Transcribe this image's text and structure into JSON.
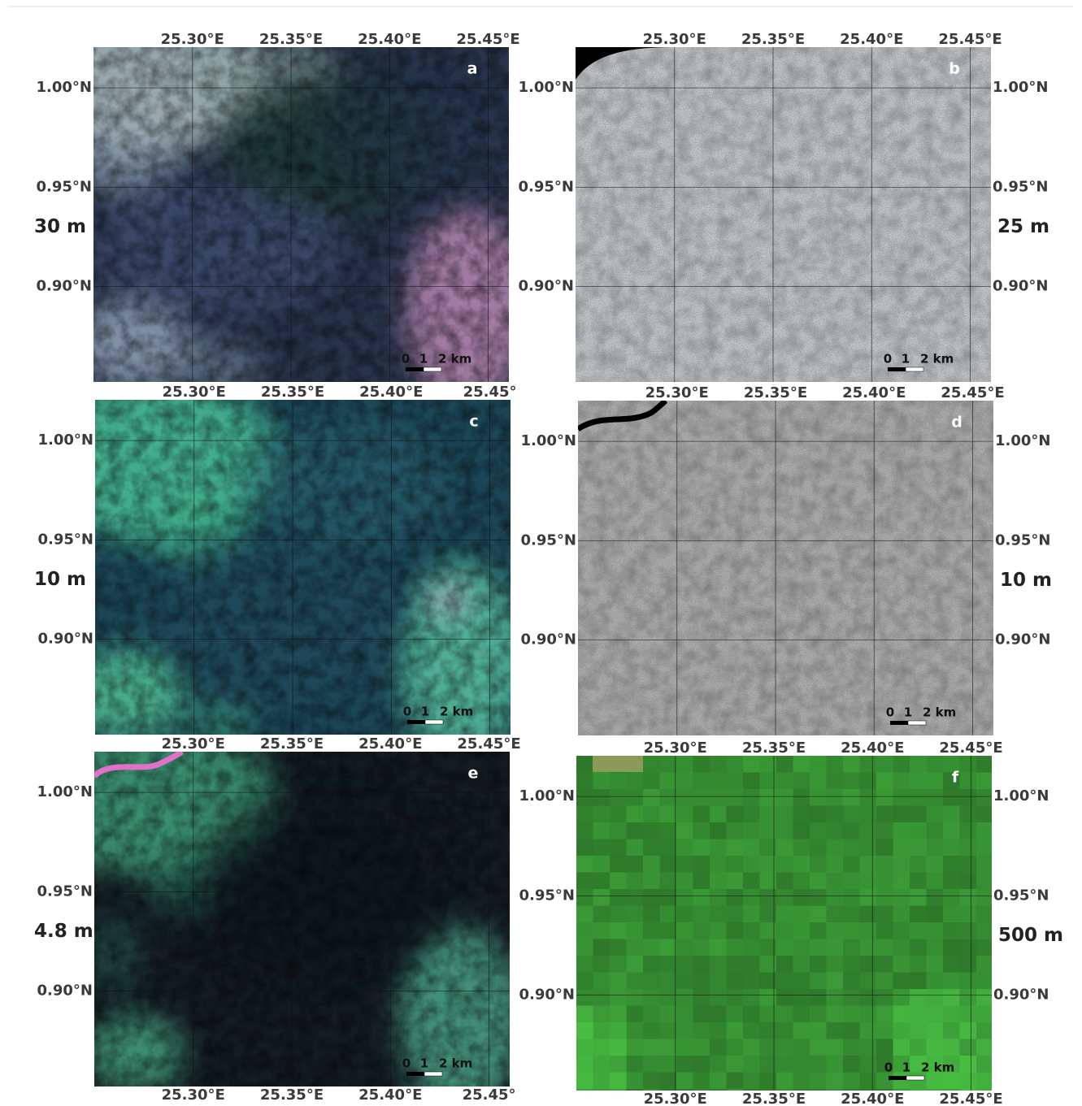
{
  "figure": {
    "extent": {
      "lon": [
        25.2498,
        25.4605
      ],
      "lat": [
        0.852,
        1.0205
      ]
    },
    "panels": [
      {
        "letter": "a",
        "resolution": "30 m",
        "lon_top": [
          {
            "value": 25.3,
            "label": "25.30°E"
          },
          {
            "value": 25.35,
            "label": "25.35°E"
          },
          {
            "value": 25.4,
            "label": "25.40°E"
          },
          {
            "value": 25.45,
            "label": "25.45°E"
          }
        ],
        "lat_left": [
          {
            "value": 1.0,
            "label": "1.00°N"
          },
          {
            "value": 0.95,
            "label": "0.95°N"
          },
          {
            "value": 0.9,
            "label": "0.90°N"
          }
        ],
        "scale": [
          "0",
          "1",
          "2 km"
        ]
      },
      {
        "letter": "b",
        "resolution": "25 m",
        "lon_top": [
          {
            "value": 25.3,
            "label": "25.30°E"
          },
          {
            "value": 25.35,
            "label": "25.35°E"
          },
          {
            "value": 25.4,
            "label": "25.40°E"
          },
          {
            "value": 25.45,
            "label": "25.45°E"
          }
        ],
        "lat_left": [
          {
            "value": 1.0,
            "label": "1.00°N"
          },
          {
            "value": 0.95,
            "label": "0.95°N"
          },
          {
            "value": 0.9,
            "label": "0.90°N"
          }
        ],
        "lat_right": [
          {
            "value": 1.0,
            "label": "1.00°N"
          },
          {
            "value": 0.95,
            "label": "0.95°N"
          },
          {
            "value": 0.9,
            "label": "0.90°N"
          }
        ],
        "scale": [
          "0",
          "1",
          "2 km"
        ]
      },
      {
        "letter": "c",
        "resolution": "10 m",
        "lon_top": [
          {
            "value": 25.3,
            "label": "25.30°E"
          },
          {
            "value": 25.35,
            "label": "25.35°E"
          },
          {
            "value": 25.4,
            "label": "25.40°E"
          },
          {
            "value": 25.45,
            "label": "25.45°"
          }
        ],
        "lat_left": [
          {
            "value": 1.0,
            "label": "1.00°N"
          },
          {
            "value": 0.95,
            "label": "0.95°N"
          },
          {
            "value": 0.9,
            "label": "0.90°N"
          }
        ],
        "scale": [
          "0",
          "1",
          "2 km"
        ]
      },
      {
        "letter": "d",
        "resolution": "10 m",
        "lon_top": [
          {
            "value": 25.3,
            "label": "25.30°E"
          },
          {
            "value": 25.35,
            "label": "25.35°E"
          },
          {
            "value": 25.4,
            "label": "25.40°E"
          },
          {
            "value": 25.45,
            "label": "25.45°E"
          }
        ],
        "lat_left": [
          {
            "value": 1.0,
            "label": "1.00°N"
          },
          {
            "value": 0.95,
            "label": "0.95°N"
          },
          {
            "value": 0.9,
            "label": "0.90°N"
          }
        ],
        "lat_right": [
          {
            "value": 1.0,
            "label": "1.00°N"
          },
          {
            "value": 0.95,
            "label": "0.95°N"
          },
          {
            "value": 0.9,
            "label": "0.90°N"
          }
        ],
        "scale": [
          "0",
          "1",
          "2 km"
        ]
      },
      {
        "letter": "e",
        "resolution": "4.8 m",
        "lon_top": [
          {
            "value": 25.3,
            "label": "25.30°E"
          },
          {
            "value": 25.35,
            "label": "25.35°E"
          },
          {
            "value": 25.4,
            "label": "25.40°E"
          },
          {
            "value": 25.45,
            "label": "25.45°E"
          }
        ],
        "lon_bottom": [
          {
            "value": 25.3,
            "label": "25.30°E"
          },
          {
            "value": 25.35,
            "label": "25.35°E"
          },
          {
            "value": 25.4,
            "label": "25.40°E"
          },
          {
            "value": 25.45,
            "label": "25.45°"
          }
        ],
        "lat_left": [
          {
            "value": 1.0,
            "label": "1.00°N"
          },
          {
            "value": 0.95,
            "label": "0.95°N"
          },
          {
            "value": 0.9,
            "label": "0.90°N"
          }
        ],
        "scale": [
          "0",
          "1",
          "2 km"
        ]
      },
      {
        "letter": "f",
        "resolution": "500 m",
        "lon_top": [
          {
            "value": 25.3,
            "label": "25.30°E"
          },
          {
            "value": 25.35,
            "label": "25.35°E"
          },
          {
            "value": 25.4,
            "label": "25.40°E"
          },
          {
            "value": 25.45,
            "label": "25.45°E"
          }
        ],
        "lon_bottom": [
          {
            "value": 25.3,
            "label": "25.30°E"
          },
          {
            "value": 25.35,
            "label": "25.35°E"
          },
          {
            "value": 25.4,
            "label": "25.40°E"
          },
          {
            "value": 25.45,
            "label": "25.45°E"
          }
        ],
        "lat_left": [
          {
            "value": 1.0,
            "label": "1.00°N"
          },
          {
            "value": 0.95,
            "label": "0.95°N"
          },
          {
            "value": 0.9,
            "label": "0.90°N"
          }
        ],
        "lat_right": [
          {
            "value": 1.0,
            "label": "1.00°N"
          },
          {
            "value": 0.95,
            "label": "0.95°N"
          },
          {
            "value": 0.9,
            "label": "0.90°N"
          }
        ],
        "scale": [
          "0",
          "1",
          "2 km"
        ]
      }
    ]
  }
}
